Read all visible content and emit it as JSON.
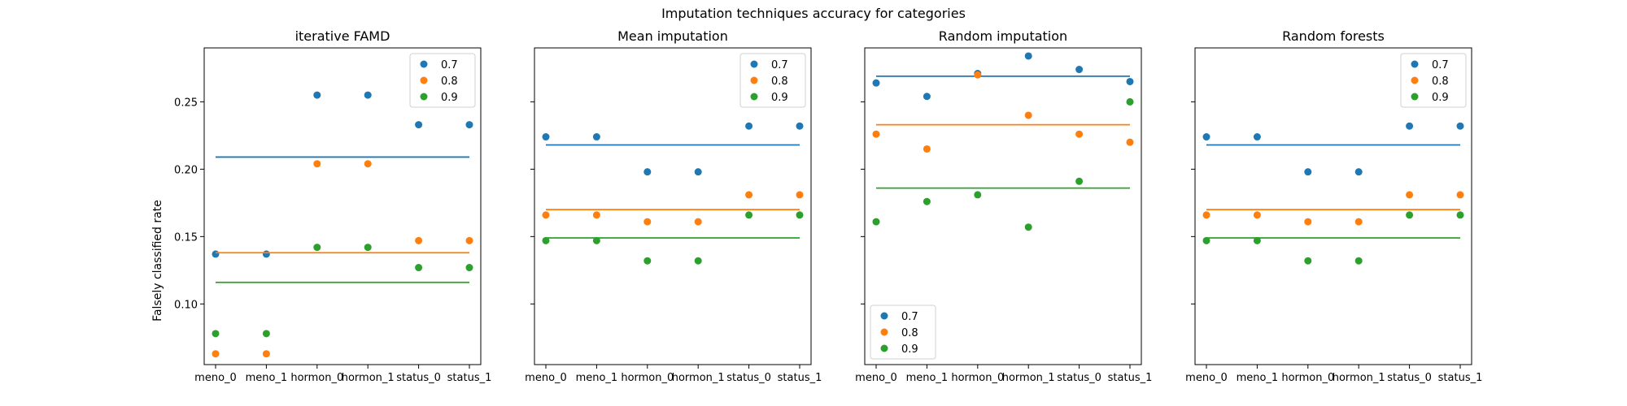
{
  "figure": {
    "suptitle": "Imputation techniques accuracy for categories",
    "ylabel": "Falsely classified rate"
  },
  "colors": {
    "0.7": "#1f77b4",
    "0.8": "#ff7f0e",
    "0.9": "#2ca02c"
  },
  "chart_data": [
    {
      "type": "scatter",
      "title": "iterative FAMD",
      "xlabel": "",
      "ylabel": "Falsely classified rate",
      "categories": [
        "meno_0",
        "meno_1",
        "hormon_0",
        "hormon_1",
        "status_0",
        "status_1"
      ],
      "ylim": [
        0.055,
        0.29
      ],
      "yticks": [
        "0.10",
        "0.15",
        "0.20",
        "0.25"
      ],
      "legend_position": "top-right",
      "series": [
        {
          "name": "0.7",
          "values": [
            0.137,
            0.137,
            0.255,
            0.255,
            0.233,
            0.233
          ],
          "mean": 0.209
        },
        {
          "name": "0.8",
          "values": [
            0.063,
            0.063,
            0.204,
            0.204,
            0.147,
            0.147
          ],
          "mean": 0.138
        },
        {
          "name": "0.9",
          "values": [
            0.078,
            0.078,
            0.142,
            0.142,
            0.127,
            0.127
          ],
          "mean": 0.116
        }
      ]
    },
    {
      "type": "scatter",
      "title": "Mean imputation",
      "xlabel": "",
      "ylabel": "",
      "categories": [
        "meno_0",
        "meno_1",
        "hormon_0",
        "hormon_1",
        "status_0",
        "status_1"
      ],
      "ylim": [
        0.055,
        0.29
      ],
      "yticks": [
        "",
        "",
        "",
        ""
      ],
      "legend_position": "top-right",
      "series": [
        {
          "name": "0.7",
          "values": [
            0.224,
            0.224,
            0.198,
            0.198,
            0.232,
            0.232
          ],
          "mean": 0.218
        },
        {
          "name": "0.8",
          "values": [
            0.166,
            0.166,
            0.161,
            0.161,
            0.181,
            0.181
          ],
          "mean": 0.17
        },
        {
          "name": "0.9",
          "values": [
            0.147,
            0.147,
            0.132,
            0.132,
            0.166,
            0.166
          ],
          "mean": 0.149
        }
      ]
    },
    {
      "type": "scatter",
      "title": "Random imputation",
      "xlabel": "",
      "ylabel": "",
      "categories": [
        "meno_0",
        "meno_1",
        "hormon_0",
        "hormon_1",
        "status_0",
        "status_1"
      ],
      "ylim": [
        0.055,
        0.29
      ],
      "yticks": [
        "",
        "",
        "",
        ""
      ],
      "legend_position": "bottom-left",
      "series": [
        {
          "name": "0.7",
          "values": [
            0.264,
            0.254,
            0.271,
            0.284,
            0.274,
            0.265
          ],
          "mean": 0.269
        },
        {
          "name": "0.8",
          "values": [
            0.226,
            0.215,
            0.27,
            0.24,
            0.226,
            0.22
          ],
          "mean": 0.233
        },
        {
          "name": "0.9",
          "values": [
            0.161,
            0.176,
            0.181,
            0.157,
            0.191,
            0.25
          ],
          "mean": 0.186
        }
      ]
    },
    {
      "type": "scatter",
      "title": "Random forests",
      "xlabel": "",
      "ylabel": "",
      "categories": [
        "meno_0",
        "meno_1",
        "hormon_0",
        "hormon_1",
        "status_0",
        "status_1"
      ],
      "ylim": [
        0.055,
        0.29
      ],
      "yticks": [
        "",
        "",
        "",
        ""
      ],
      "legend_position": "top-right",
      "series": [
        {
          "name": "0.7",
          "values": [
            0.224,
            0.224,
            0.198,
            0.198,
            0.232,
            0.232
          ],
          "mean": 0.218
        },
        {
          "name": "0.8",
          "values": [
            0.166,
            0.166,
            0.161,
            0.161,
            0.181,
            0.181
          ],
          "mean": 0.17
        },
        {
          "name": "0.9",
          "values": [
            0.147,
            0.147,
            0.132,
            0.132,
            0.166,
            0.166
          ],
          "mean": 0.149
        }
      ]
    }
  ]
}
